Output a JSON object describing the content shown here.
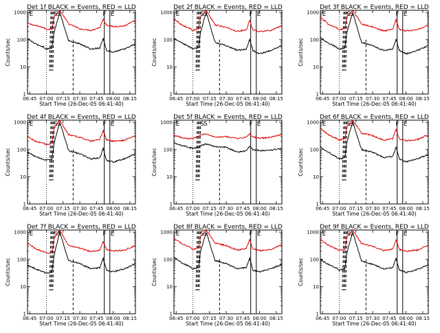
{
  "figure": {
    "background": "#ffffff",
    "colors": {
      "events": "#000000",
      "lld": "#e00000"
    }
  },
  "chart_data": [
    {
      "type": "line",
      "title": "Det 1f BLACK = Events, RED = LLD",
      "xlabel": "Start Time (26-Dec-05 06:41:40)",
      "ylabel": "Counts/sec",
      "y_scale": "log",
      "ylim": [
        1,
        1200
      ],
      "xlim": [
        "06:43",
        "08:20"
      ],
      "x_ticks": [
        "06:45",
        "07:00",
        "07:15",
        "07:30",
        "07:45",
        "08:00",
        "08:15"
      ],
      "y_ticks": [
        "1",
        "10",
        "100",
        "1000"
      ],
      "grid": false,
      "legend": "none",
      "flags": [
        "E",
        "S",
        "S",
        "F",
        "E"
      ],
      "series": [
        {
          "color": "#e00000",
          "x": [
            "06:43",
            "06:50",
            "06:57",
            "07:00",
            "07:05",
            "07:07",
            "07:12",
            "07:20",
            "07:30",
            "07:40",
            "07:48",
            "07:51",
            "07:54",
            "08:00",
            "08:10",
            "08:20"
          ],
          "values": [
            400,
            330,
            280,
            240,
            250,
            700,
            1200,
            380,
            250,
            220,
            280,
            560,
            350,
            300,
            320,
            500
          ]
        },
        {
          "color": "#000000",
          "x": [
            "06:43",
            "06:50",
            "06:57",
            "07:00",
            "07:05",
            "07:07",
            "07:12",
            "07:20",
            "07:30",
            "07:40",
            "07:48",
            "07:51",
            "07:54",
            "08:00",
            "08:10",
            "08:20"
          ],
          "values": [
            110,
            70,
            55,
            45,
            50,
            200,
            1000,
            90,
            70,
            45,
            50,
            110,
            40,
            35,
            45,
            70
          ]
        }
      ]
    },
    {
      "type": "line",
      "title": "Det 2f BLACK = Events, RED = LLD",
      "xlabel": "Start Time (26-Dec-05 06:41:40)",
      "ylabel": "Counts/sec",
      "y_scale": "log",
      "ylim": [
        1,
        1200
      ],
      "xlim": [
        "06:43",
        "08:20"
      ],
      "x_ticks": [
        "06:45",
        "07:00",
        "07:15",
        "07:30",
        "07:45",
        "08:00",
        "08:15"
      ],
      "y_ticks": [
        "1",
        "10",
        "100",
        "1000"
      ],
      "grid": false,
      "legend": "none",
      "flags": [
        "E",
        "S",
        "S",
        "F",
        "E"
      ],
      "series": [
        {
          "color": "#e00000",
          "x": [
            "06:43",
            "06:50",
            "06:57",
            "07:00",
            "07:05",
            "07:07",
            "07:12",
            "07:20",
            "07:30",
            "07:40",
            "07:48",
            "07:51",
            "07:54",
            "08:00",
            "08:10",
            "08:20"
          ],
          "values": [
            600,
            350,
            260,
            220,
            250,
            700,
            1200,
            350,
            280,
            200,
            230,
            500,
            230,
            200,
            220,
            330
          ]
        },
        {
          "color": "#000000",
          "x": [
            "06:43",
            "06:50",
            "06:57",
            "07:00",
            "07:05",
            "07:07",
            "07:12",
            "07:20",
            "07:30",
            "07:40",
            "07:48",
            "07:51",
            "07:54",
            "08:00",
            "08:10",
            "08:20"
          ],
          "values": [
            110,
            75,
            55,
            45,
            50,
            200,
            1000,
            80,
            60,
            40,
            45,
            100,
            40,
            30,
            40,
            60
          ]
        }
      ]
    },
    {
      "type": "line",
      "title": "Det 3f BLACK = Events, RED = LLD",
      "xlabel": "Start Time (26-Dec-05 06:41:40)",
      "ylabel": "Counts/sec",
      "y_scale": "log",
      "ylim": [
        1,
        1200
      ],
      "xlim": [
        "06:43",
        "08:20"
      ],
      "x_ticks": [
        "06:45",
        "07:00",
        "07:15",
        "07:30",
        "07:45",
        "08:00",
        "08:15"
      ],
      "y_ticks": [
        "1",
        "10",
        "100",
        "1000"
      ],
      "grid": false,
      "legend": "none",
      "flags": [
        "E",
        "S",
        "S",
        "F",
        "E"
      ],
      "series": [
        {
          "color": "#e00000",
          "x": [
            "06:43",
            "06:50",
            "06:57",
            "07:00",
            "07:05",
            "07:07",
            "07:12",
            "07:20",
            "07:30",
            "07:40",
            "07:48",
            "07:51",
            "07:54",
            "08:00",
            "08:10",
            "08:20"
          ],
          "values": [
            650,
            380,
            280,
            230,
            260,
            700,
            1200,
            380,
            290,
            210,
            240,
            550,
            240,
            210,
            230,
            350
          ]
        },
        {
          "color": "#000000",
          "x": [
            "06:43",
            "06:50",
            "06:57",
            "07:00",
            "07:05",
            "07:07",
            "07:12",
            "07:20",
            "07:30",
            "07:40",
            "07:48",
            "07:51",
            "07:54",
            "08:00",
            "08:10",
            "08:20"
          ],
          "values": [
            120,
            75,
            55,
            45,
            50,
            200,
            1000,
            80,
            60,
            40,
            45,
            100,
            40,
            30,
            40,
            60
          ]
        }
      ]
    },
    {
      "type": "line",
      "title": "Det 4f BLACK = Events, RED = LLD",
      "xlabel": "Start Time (26-Dec-05 06:41:40)",
      "ylabel": "Counts/sec",
      "y_scale": "log",
      "ylim": [
        1,
        1200
      ],
      "xlim": [
        "06:43",
        "08:20"
      ],
      "x_ticks": [
        "06:45",
        "07:00",
        "07:15",
        "07:30",
        "07:45",
        "08:00",
        "08:15"
      ],
      "y_ticks": [
        "1",
        "10",
        "100",
        "1000"
      ],
      "grid": false,
      "legend": "none",
      "flags": [
        "E",
        "S",
        "S",
        "F",
        "E"
      ],
      "series": [
        {
          "color": "#e00000",
          "x": [
            "06:43",
            "06:50",
            "06:57",
            "07:00",
            "07:05",
            "07:07",
            "07:12",
            "07:20",
            "07:30",
            "07:40",
            "07:48",
            "07:51",
            "07:54",
            "08:00",
            "08:10",
            "08:20"
          ],
          "values": [
            300,
            200,
            170,
            150,
            170,
            600,
            1200,
            350,
            280,
            200,
            230,
            500,
            230,
            200,
            220,
            330
          ]
        },
        {
          "color": "#000000",
          "x": [
            "06:43",
            "06:50",
            "06:57",
            "07:00",
            "07:05",
            "07:07",
            "07:12",
            "07:20",
            "07:30",
            "07:40",
            "07:48",
            "07:51",
            "07:54",
            "08:00",
            "08:10",
            "08:20"
          ],
          "values": [
            80,
            55,
            45,
            40,
            45,
            180,
            1000,
            90,
            70,
            45,
            50,
            110,
            40,
            35,
            45,
            70
          ]
        }
      ]
    },
    {
      "type": "line",
      "title": "Det 5f BLACK = Events, RED = LLD",
      "xlabel": "Start Time (26-Dec-05 06:41:40)",
      "ylabel": "Counts/sec",
      "y_scale": "log",
      "ylim": [
        1,
        1200
      ],
      "xlim": [
        "06:43",
        "08:20"
      ],
      "x_ticks": [
        "06:45",
        "07:00",
        "07:15",
        "07:30",
        "07:45",
        "08:00",
        "08:15"
      ],
      "y_ticks": [
        "1",
        "10",
        "100",
        "1000"
      ],
      "grid": false,
      "legend": "none",
      "flags": [
        "E",
        "S",
        "S",
        "F",
        "E"
      ],
      "series": [
        {
          "color": "#e00000",
          "x": [
            "06:43",
            "06:50",
            "06:57",
            "07:00",
            "07:05",
            "07:07",
            "07:12",
            "07:20",
            "07:30",
            "07:40",
            "07:48",
            "07:51",
            "07:54",
            "08:00",
            "08:10",
            "08:20"
          ],
          "values": [
            350,
            270,
            250,
            260,
            320,
            340,
            380,
            280,
            300,
            250,
            280,
            380,
            290,
            260,
            280,
            360
          ]
        },
        {
          "color": "#000000",
          "x": [
            "06:43",
            "06:50",
            "06:57",
            "07:00",
            "07:05",
            "07:07",
            "07:12",
            "07:20",
            "07:30",
            "07:40",
            "07:48",
            "07:51",
            "07:54",
            "08:00",
            "08:10",
            "08:20"
          ],
          "values": [
            170,
            140,
            120,
            110,
            120,
            140,
            160,
            130,
            120,
            80,
            90,
            130,
            100,
            90,
            95,
            110
          ]
        }
      ]
    },
    {
      "type": "line",
      "title": "Det 6f BLACK = Events, RED = LLD",
      "xlabel": "Start Time (26-Dec-05 06:41:40)",
      "ylabel": "Counts/sec",
      "y_scale": "log",
      "ylim": [
        1,
        1200
      ],
      "xlim": [
        "06:43",
        "08:20"
      ],
      "x_ticks": [
        "06:45",
        "07:00",
        "07:15",
        "07:30",
        "07:45",
        "08:00",
        "08:15"
      ],
      "y_ticks": [
        "1",
        "10",
        "100",
        "1000"
      ],
      "grid": false,
      "legend": "none",
      "flags": [
        "E",
        "S",
        "S",
        "F",
        "E"
      ],
      "series": [
        {
          "color": "#e00000",
          "x": [
            "06:43",
            "06:50",
            "06:57",
            "07:00",
            "07:05",
            "07:07",
            "07:12",
            "07:20",
            "07:30",
            "07:40",
            "07:48",
            "07:51",
            "07:54",
            "08:00",
            "08:10",
            "08:20"
          ],
          "values": [
            600,
            350,
            260,
            220,
            250,
            700,
            1200,
            400,
            320,
            220,
            250,
            550,
            240,
            210,
            230,
            350
          ]
        },
        {
          "color": "#000000",
          "x": [
            "06:43",
            "06:50",
            "06:57",
            "07:00",
            "07:05",
            "07:07",
            "07:12",
            "07:20",
            "07:30",
            "07:40",
            "07:48",
            "07:51",
            "07:54",
            "08:00",
            "08:10",
            "08:20"
          ],
          "values": [
            130,
            80,
            55,
            45,
            50,
            200,
            1000,
            100,
            80,
            50,
            55,
            120,
            45,
            35,
            45,
            65
          ]
        }
      ]
    },
    {
      "type": "line",
      "title": "Det 7f BLACK = Events, RED = LLD",
      "xlabel": "Start Time (26-Dec-05 06:41:40)",
      "ylabel": "Counts/sec",
      "y_scale": "log",
      "ylim": [
        1,
        1200
      ],
      "xlim": [
        "06:43",
        "08:20"
      ],
      "x_ticks": [
        "06:45",
        "07:00",
        "07:15",
        "07:30",
        "07:45",
        "08:00",
        "08:15"
      ],
      "y_ticks": [
        "1",
        "10",
        "100",
        "1000"
      ],
      "grid": false,
      "legend": "none",
      "flags": [
        "E",
        "S",
        "S",
        "F",
        "E"
      ],
      "series": [
        {
          "color": "#e00000",
          "x": [
            "06:43",
            "06:50",
            "06:57",
            "07:00",
            "07:05",
            "07:07",
            "07:12",
            "07:20",
            "07:30",
            "07:40",
            "07:48",
            "07:51",
            "07:54",
            "08:00",
            "08:10",
            "08:20"
          ],
          "values": [
            400,
            250,
            190,
            170,
            180,
            600,
            1200,
            320,
            260,
            190,
            220,
            450,
            230,
            200,
            220,
            320
          ]
        },
        {
          "color": "#000000",
          "x": [
            "06:43",
            "06:50",
            "06:57",
            "07:00",
            "07:05",
            "07:07",
            "07:12",
            "07:20",
            "07:30",
            "07:40",
            "07:48",
            "07:51",
            "07:54",
            "08:00",
            "08:10",
            "08:20"
          ],
          "values": [
            60,
            45,
            35,
            30,
            35,
            150,
            1000,
            90,
            70,
            45,
            50,
            110,
            40,
            35,
            45,
            70
          ]
        }
      ]
    },
    {
      "type": "line",
      "title": "Det 8f BLACK = Events, RED = LLD",
      "xlabel": "Start Time (26-Dec-05 06:41:40)",
      "ylabel": "Counts/sec",
      "y_scale": "log",
      "ylim": [
        1,
        1200
      ],
      "xlim": [
        "06:43",
        "08:20"
      ],
      "x_ticks": [
        "06:45",
        "07:00",
        "07:15",
        "07:30",
        "07:45",
        "08:00",
        "08:15"
      ],
      "y_ticks": [
        "1",
        "10",
        "100",
        "1000"
      ],
      "grid": false,
      "legend": "none",
      "flags": [
        "E",
        "S",
        "S",
        "F",
        "E"
      ],
      "series": [
        {
          "color": "#e00000",
          "x": [
            "06:43",
            "06:50",
            "06:57",
            "07:00",
            "07:05",
            "07:07",
            "07:12",
            "07:20",
            "07:30",
            "07:40",
            "07:48",
            "07:51",
            "07:54",
            "08:00",
            "08:10",
            "08:20"
          ],
          "values": [
            600,
            380,
            280,
            230,
            260,
            700,
            1200,
            400,
            320,
            220,
            250,
            550,
            240,
            210,
            230,
            350
          ]
        },
        {
          "color": "#000000",
          "x": [
            "06:43",
            "06:50",
            "06:57",
            "07:00",
            "07:05",
            "07:07",
            "07:12",
            "07:20",
            "07:30",
            "07:40",
            "07:48",
            "07:51",
            "07:54",
            "08:00",
            "08:10",
            "08:20"
          ],
          "values": [
            120,
            75,
            55,
            45,
            50,
            200,
            1000,
            90,
            70,
            45,
            50,
            110,
            40,
            35,
            45,
            65
          ]
        }
      ]
    },
    {
      "type": "line",
      "title": "Det 9f BLACK = Events, RED = LLD",
      "xlabel": "Start Time (26-Dec-05 06:41:40)",
      "ylabel": "Counts/sec",
      "y_scale": "log",
      "ylim": [
        1,
        1200
      ],
      "xlim": [
        "06:43",
        "08:20"
      ],
      "x_ticks": [
        "06:45",
        "07:00",
        "07:15",
        "07:30",
        "07:45",
        "08:00",
        "08:15"
      ],
      "y_ticks": [
        "1",
        "10",
        "100",
        "1000"
      ],
      "grid": false,
      "legend": "none",
      "flags": [
        "E",
        "S",
        "S",
        "F",
        "E"
      ],
      "series": [
        {
          "color": "#e00000",
          "x": [
            "06:43",
            "06:50",
            "06:57",
            "07:00",
            "07:05",
            "07:07",
            "07:12",
            "07:20",
            "07:30",
            "07:40",
            "07:48",
            "07:51",
            "07:54",
            "08:00",
            "08:10",
            "08:20"
          ],
          "values": [
            550,
            330,
            250,
            210,
            240,
            700,
            1200,
            380,
            300,
            210,
            240,
            520,
            230,
            200,
            220,
            330
          ]
        },
        {
          "color": "#000000",
          "x": [
            "06:43",
            "06:50",
            "06:57",
            "07:00",
            "07:05",
            "07:07",
            "07:12",
            "07:20",
            "07:30",
            "07:40",
            "07:48",
            "07:51",
            "07:54",
            "08:00",
            "08:10",
            "08:20"
          ],
          "values": [
            100,
            65,
            50,
            40,
            45,
            180,
            1000,
            85,
            65,
            45,
            50,
            110,
            40,
            33,
            42,
            62
          ]
        }
      ]
    }
  ]
}
